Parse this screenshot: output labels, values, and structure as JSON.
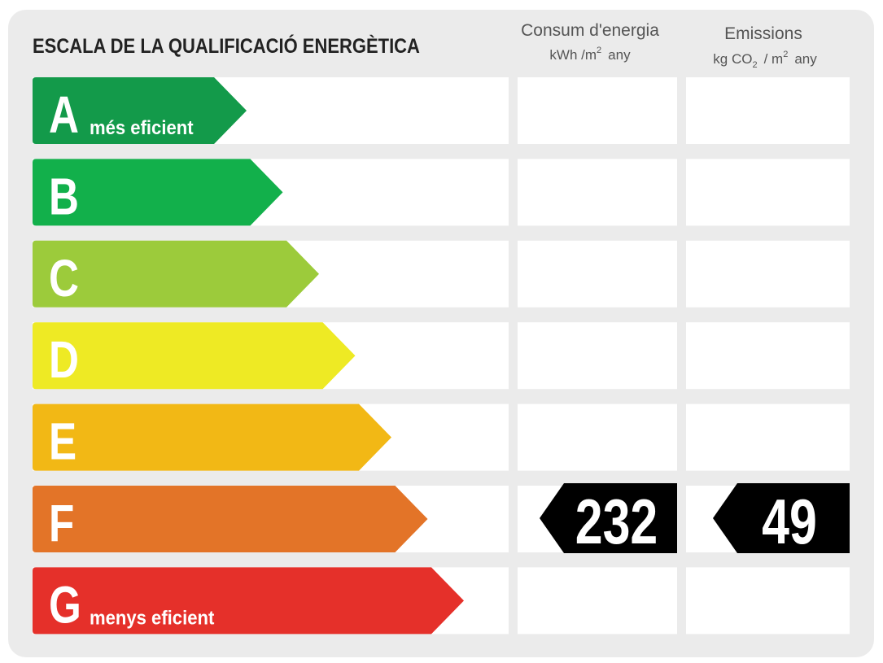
{
  "title": "ESCALA DE LA QUALIFICACIÓ ENERGÈTICA",
  "columns": {
    "energy": {
      "label": "Consum d'energia",
      "unit": [
        "kWh /m",
        "2",
        "any"
      ]
    },
    "emissions": {
      "label": "Emissions",
      "unit": [
        "kg CO",
        "2",
        "/ m",
        "2",
        "any"
      ]
    }
  },
  "grades": [
    {
      "letter": "A",
      "note": "més eficient",
      "color": "#139a4a"
    },
    {
      "letter": "B",
      "color": "#12b04b"
    },
    {
      "letter": "C",
      "color": "#9ccb3b"
    },
    {
      "letter": "D",
      "color": "#eeea24"
    },
    {
      "letter": "E",
      "color": "#f2b815"
    },
    {
      "letter": "F",
      "color": "#e37428",
      "energy": 232,
      "emissions": 49
    },
    {
      "letter": "G",
      "note": "menys eficient",
      "color": "#e5302a"
    }
  ]
}
